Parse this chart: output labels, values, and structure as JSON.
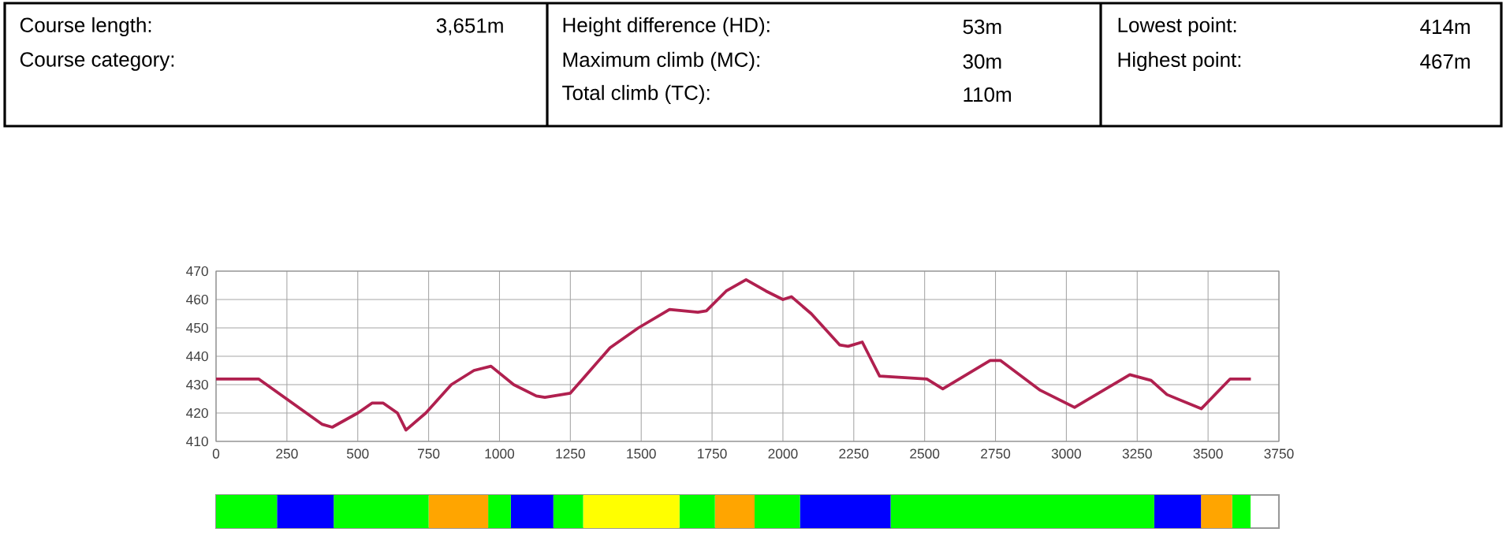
{
  "chart_data": [
    {
      "type": "line",
      "color": "#b0204f",
      "marker": "none",
      "grid": true,
      "x": [
        0,
        150,
        375,
        410,
        500,
        550,
        590,
        640,
        670,
        740,
        830,
        910,
        970,
        1050,
        1130,
        1160,
        1250,
        1320,
        1390,
        1490,
        1600,
        1700,
        1730,
        1800,
        1870,
        1940,
        2000,
        2030,
        2100,
        2200,
        2230,
        2280,
        2341,
        2508,
        2564,
        2731,
        2768,
        2908,
        3029,
        3224,
        3299,
        3355,
        3476,
        3578,
        3651
      ],
      "values": [
        432,
        432,
        416,
        415,
        420,
        423.5,
        423.5,
        420,
        414,
        420,
        430,
        435,
        436.5,
        430,
        426,
        425.5,
        427,
        435,
        443,
        450,
        456.5,
        455.5,
        456,
        463,
        467,
        463,
        460,
        461,
        455,
        444,
        443.5,
        445,
        433,
        432,
        428.5,
        438.5,
        438.5,
        428,
        422,
        433.5,
        431.5,
        426.5,
        421.5,
        432,
        432
      ],
      "xlim": [
        0,
        3750
      ],
      "ylim": [
        410,
        470
      ],
      "xticks": [
        0,
        250,
        500,
        750,
        1000,
        1250,
        1500,
        1750,
        2000,
        2250,
        2500,
        2750,
        3000,
        3250,
        3500,
        3750
      ],
      "yticks": [
        410,
        420,
        430,
        440,
        450,
        460,
        470
      ],
      "annotations": [
        "Course length:",
        "3,651m",
        "Course category:",
        "Height difference (HD):",
        "53m",
        "Maximum climb (MC):",
        "30m",
        "Total climb (TC):",
        "110m",
        "Lowest point:",
        "414m",
        "Highest point:",
        "467m"
      ]
    },
    {
      "type": "bar",
      "orientation": "horizontal",
      "stacked": true,
      "categories": [
        null
      ],
      "xlim": [
        0,
        3750
      ],
      "tick_labels": false,
      "series": [
        {
          "color": "#00ff00",
          "values": [
            215
          ]
        },
        {
          "color": "#0000ff",
          "values": [
            200
          ]
        },
        {
          "color": "#00ff00",
          "values": [
            335
          ]
        },
        {
          "color": "#ffa500",
          "values": [
            210
          ]
        },
        {
          "color": "#00ff00",
          "values": [
            80
          ]
        },
        {
          "color": "#0000ff",
          "values": [
            150
          ]
        },
        {
          "color": "#00ff00",
          "values": [
            105
          ]
        },
        {
          "color": "#ffff00",
          "values": [
            340
          ]
        },
        {
          "color": "#00ff00",
          "values": [
            125
          ]
        },
        {
          "color": "#ffa500",
          "values": [
            140
          ]
        },
        {
          "color": "#00ff00",
          "values": [
            160
          ]
        },
        {
          "color": "#0000ff",
          "values": [
            320
          ]
        },
        {
          "color": "#00ff00",
          "values": [
            930
          ]
        },
        {
          "color": "#0000ff",
          "values": [
            165
          ]
        },
        {
          "color": "#ffa500",
          "values": [
            110
          ]
        },
        {
          "color": "#00ff00",
          "values": [
            65
          ]
        }
      ]
    }
  ]
}
